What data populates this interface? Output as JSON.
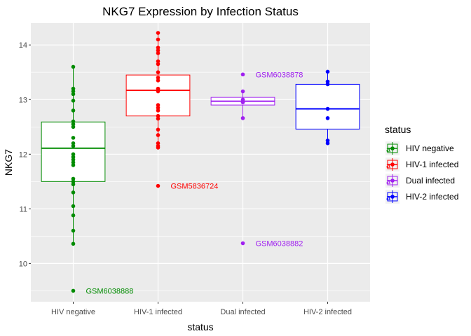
{
  "chart_data": {
    "type": "box",
    "title": "NKG7 Expression by Infection Status",
    "xlabel": "status",
    "ylabel": "NKG7",
    "ylim": [
      9.3,
      14.4
    ],
    "yticks": [
      10,
      11,
      12,
      13,
      14
    ],
    "categories": [
      "HIV negative",
      "HIV-1 infected",
      "Dual infected",
      "HIV-2 infected"
    ],
    "colors": [
      "#008b00",
      "#ff0000",
      "#a020f0",
      "#0000ff"
    ],
    "legend": {
      "title": "status",
      "position": "right"
    },
    "grid": true,
    "boxes": [
      {
        "name": "HIV negative",
        "min": 10.36,
        "q1": 11.5,
        "median": 12.11,
        "q3": 12.59,
        "max": 13.6
      },
      {
        "name": "HIV-1 infected",
        "min": 12.12,
        "q1": 12.7,
        "median": 13.17,
        "q3": 13.45,
        "max": 14.22
      },
      {
        "name": "Dual infected",
        "min": 12.66,
        "q1": 12.9,
        "median": 12.97,
        "q3": 13.04,
        "max": 13.15
      },
      {
        "name": "HIV-2 infected",
        "min": 12.2,
        "q1": 12.46,
        "median": 12.83,
        "q3": 13.28,
        "max": 13.51
      }
    ],
    "points": [
      [
        13.6,
        13.2,
        13.15,
        13.1,
        12.98,
        12.8,
        12.6,
        12.55,
        12.5,
        12.3,
        12.2,
        12.15,
        12.0,
        11.95,
        11.9,
        11.85,
        11.8,
        11.55,
        11.5,
        11.45,
        11.3,
        11.05,
        10.88,
        10.6,
        10.36,
        9.5
      ],
      [
        14.22,
        14.1,
        13.95,
        13.9,
        13.85,
        13.7,
        13.65,
        13.5,
        13.4,
        13.35,
        13.2,
        13.17,
        13.15,
        12.9,
        12.85,
        12.8,
        12.7,
        12.65,
        12.45,
        12.35,
        12.2,
        12.15,
        12.12,
        11.42
      ],
      [
        13.46,
        13.15,
        13.0,
        12.95,
        12.66,
        10.37
      ],
      [
        13.51,
        13.33,
        13.28,
        12.83,
        12.66,
        12.25,
        12.2
      ]
    ],
    "annotations": [
      {
        "category": 0,
        "y": 9.5,
        "text": "GSM6038888"
      },
      {
        "category": 1,
        "y": 11.42,
        "text": "GSM5836724"
      },
      {
        "category": 2,
        "y": 13.46,
        "text": "GSM6038878"
      },
      {
        "category": 2,
        "y": 10.37,
        "text": "GSM6038882"
      }
    ]
  }
}
